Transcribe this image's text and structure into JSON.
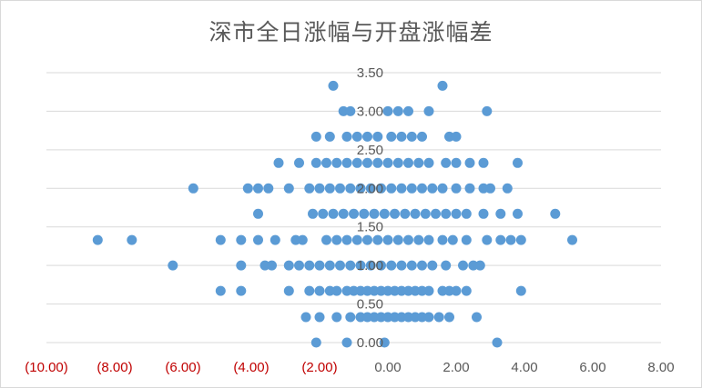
{
  "chart_data": {
    "type": "scatter",
    "title": "深市全日涨幅与开盘涨幅差",
    "xlabel": "",
    "ylabel": "",
    "xlim": [
      -10,
      8
    ],
    "ylim": [
      0,
      3.5
    ],
    "x_ticks": [
      {
        "value": -10,
        "label": "(10.00)",
        "color": "#c00000"
      },
      {
        "value": -8,
        "label": "(8.00)",
        "color": "#c00000"
      },
      {
        "value": -6,
        "label": "(6.00)",
        "color": "#c00000"
      },
      {
        "value": -4,
        "label": "(4.00)",
        "color": "#c00000"
      },
      {
        "value": -2,
        "label": "(2.00)",
        "color": "#c00000"
      },
      {
        "value": 0,
        "label": "0.00",
        "color": "#595959"
      },
      {
        "value": 2,
        "label": "2.00",
        "color": "#595959"
      },
      {
        "value": 4,
        "label": "4.00",
        "color": "#595959"
      },
      {
        "value": 6,
        "label": "6.00",
        "color": "#595959"
      },
      {
        "value": 8,
        "label": "8.00",
        "color": "#595959"
      }
    ],
    "y_ticks": [
      {
        "value": 0,
        "label": "0.00"
      },
      {
        "value": 0.5,
        "label": "0.50"
      },
      {
        "value": 1,
        "label": "1.00"
      },
      {
        "value": 1.5,
        "label": "1.50"
      },
      {
        "value": 2,
        "label": "2.00"
      },
      {
        "value": 2.5,
        "label": "2.50"
      },
      {
        "value": 3,
        "label": "3.00"
      },
      {
        "value": 3.5,
        "label": "3.50"
      }
    ],
    "grid": "horizontal",
    "legend": "none",
    "colors": {
      "marker": "#5b9bd5",
      "grid": "#d9d9d9",
      "axis_text": "#595959",
      "negative_text": "#c00000"
    },
    "series": [
      {
        "points": [
          [
            -2.1,
            0.0
          ],
          [
            -1.2,
            0.0
          ],
          [
            -0.1,
            0.0
          ],
          [
            3.2,
            0.0
          ],
          [
            -2.4,
            0.33
          ],
          [
            -2.0,
            0.33
          ],
          [
            -1.5,
            0.33
          ],
          [
            -1.1,
            0.33
          ],
          [
            -0.8,
            0.33
          ],
          [
            -0.6,
            0.33
          ],
          [
            -0.4,
            0.33
          ],
          [
            -0.2,
            0.33
          ],
          [
            0.0,
            0.33
          ],
          [
            0.2,
            0.33
          ],
          [
            0.4,
            0.33
          ],
          [
            0.6,
            0.33
          ],
          [
            0.8,
            0.33
          ],
          [
            1.0,
            0.33
          ],
          [
            1.2,
            0.33
          ],
          [
            1.5,
            0.33
          ],
          [
            1.8,
            0.33
          ],
          [
            2.6,
            0.33
          ],
          [
            -4.9,
            0.67
          ],
          [
            -4.3,
            0.67
          ],
          [
            -2.9,
            0.67
          ],
          [
            -2.3,
            0.67
          ],
          [
            -2.0,
            0.67
          ],
          [
            -1.7,
            0.67
          ],
          [
            -1.5,
            0.67
          ],
          [
            -1.2,
            0.67
          ],
          [
            -1.0,
            0.67
          ],
          [
            -0.8,
            0.67
          ],
          [
            -0.6,
            0.67
          ],
          [
            -0.4,
            0.67
          ],
          [
            -0.2,
            0.67
          ],
          [
            0.0,
            0.67
          ],
          [
            0.2,
            0.67
          ],
          [
            0.4,
            0.67
          ],
          [
            0.6,
            0.67
          ],
          [
            0.8,
            0.67
          ],
          [
            1.0,
            0.67
          ],
          [
            1.2,
            0.67
          ],
          [
            1.6,
            0.67
          ],
          [
            1.8,
            0.67
          ],
          [
            2.0,
            0.67
          ],
          [
            2.3,
            0.67
          ],
          [
            3.9,
            0.67
          ],
          [
            -6.3,
            1.0
          ],
          [
            -4.3,
            1.0
          ],
          [
            -3.6,
            1.0
          ],
          [
            -3.4,
            1.0
          ],
          [
            -2.9,
            1.0
          ],
          [
            -2.6,
            1.0
          ],
          [
            -2.3,
            1.0
          ],
          [
            -2.0,
            1.0
          ],
          [
            -1.7,
            1.0
          ],
          [
            -1.4,
            1.0
          ],
          [
            -1.1,
            1.0
          ],
          [
            -0.8,
            1.0
          ],
          [
            -0.5,
            1.0
          ],
          [
            -0.2,
            1.0
          ],
          [
            0.1,
            1.0
          ],
          [
            0.4,
            1.0
          ],
          [
            0.7,
            1.0
          ],
          [
            1.0,
            1.0
          ],
          [
            1.3,
            1.0
          ],
          [
            1.7,
            1.0
          ],
          [
            2.2,
            1.0
          ],
          [
            2.5,
            1.0
          ],
          [
            2.7,
            1.0
          ],
          [
            -8.5,
            1.33
          ],
          [
            -7.5,
            1.33
          ],
          [
            -4.9,
            1.33
          ],
          [
            -4.3,
            1.33
          ],
          [
            -3.8,
            1.33
          ],
          [
            -3.3,
            1.33
          ],
          [
            -2.7,
            1.33
          ],
          [
            -2.5,
            1.33
          ],
          [
            -1.8,
            1.33
          ],
          [
            -1.5,
            1.33
          ],
          [
            -1.2,
            1.33
          ],
          [
            -0.9,
            1.33
          ],
          [
            -0.6,
            1.33
          ],
          [
            -0.3,
            1.33
          ],
          [
            0.0,
            1.33
          ],
          [
            0.3,
            1.33
          ],
          [
            0.6,
            1.33
          ],
          [
            0.9,
            1.33
          ],
          [
            1.2,
            1.33
          ],
          [
            1.6,
            1.33
          ],
          [
            1.9,
            1.33
          ],
          [
            2.3,
            1.33
          ],
          [
            2.9,
            1.33
          ],
          [
            3.3,
            1.33
          ],
          [
            3.6,
            1.33
          ],
          [
            3.9,
            1.33
          ],
          [
            5.4,
            1.33
          ],
          [
            -3.8,
            1.67
          ],
          [
            -2.2,
            1.67
          ],
          [
            -1.9,
            1.67
          ],
          [
            -1.6,
            1.67
          ],
          [
            -1.3,
            1.67
          ],
          [
            -1.0,
            1.67
          ],
          [
            -0.7,
            1.67
          ],
          [
            -0.4,
            1.67
          ],
          [
            -0.1,
            1.67
          ],
          [
            0.2,
            1.67
          ],
          [
            0.5,
            1.67
          ],
          [
            0.8,
            1.67
          ],
          [
            1.1,
            1.67
          ],
          [
            1.4,
            1.67
          ],
          [
            1.7,
            1.67
          ],
          [
            2.0,
            1.67
          ],
          [
            2.3,
            1.67
          ],
          [
            2.8,
            1.67
          ],
          [
            3.3,
            1.67
          ],
          [
            3.8,
            1.67
          ],
          [
            4.9,
            1.67
          ],
          [
            -5.7,
            2.0
          ],
          [
            -4.1,
            2.0
          ],
          [
            -3.8,
            2.0
          ],
          [
            -3.5,
            2.0
          ],
          [
            -2.9,
            2.0
          ],
          [
            -2.3,
            2.0
          ],
          [
            -2.0,
            2.0
          ],
          [
            -1.7,
            2.0
          ],
          [
            -1.4,
            2.0
          ],
          [
            -1.1,
            2.0
          ],
          [
            -0.8,
            2.0
          ],
          [
            -0.5,
            2.0
          ],
          [
            -0.2,
            2.0
          ],
          [
            0.1,
            2.0
          ],
          [
            0.4,
            2.0
          ],
          [
            0.7,
            2.0
          ],
          [
            1.0,
            2.0
          ],
          [
            1.3,
            2.0
          ],
          [
            1.6,
            2.0
          ],
          [
            2.0,
            2.0
          ],
          [
            2.4,
            2.0
          ],
          [
            2.8,
            2.0
          ],
          [
            3.0,
            2.0
          ],
          [
            3.5,
            2.0
          ],
          [
            -3.2,
            2.33
          ],
          [
            -2.6,
            2.33
          ],
          [
            -2.1,
            2.33
          ],
          [
            -1.8,
            2.33
          ],
          [
            -1.5,
            2.33
          ],
          [
            -1.2,
            2.33
          ],
          [
            -0.9,
            2.33
          ],
          [
            -0.6,
            2.33
          ],
          [
            -0.3,
            2.33
          ],
          [
            0.0,
            2.33
          ],
          [
            0.3,
            2.33
          ],
          [
            0.6,
            2.33
          ],
          [
            0.9,
            2.33
          ],
          [
            1.2,
            2.33
          ],
          [
            1.7,
            2.33
          ],
          [
            2.0,
            2.33
          ],
          [
            2.4,
            2.33
          ],
          [
            2.8,
            2.33
          ],
          [
            3.8,
            2.33
          ],
          [
            -2.1,
            2.67
          ],
          [
            -1.7,
            2.67
          ],
          [
            -1.2,
            2.67
          ],
          [
            -0.9,
            2.67
          ],
          [
            -0.6,
            2.67
          ],
          [
            -0.3,
            2.67
          ],
          [
            0.1,
            2.67
          ],
          [
            0.4,
            2.67
          ],
          [
            0.7,
            2.67
          ],
          [
            1.0,
            2.67
          ],
          [
            1.8,
            2.67
          ],
          [
            2.0,
            2.67
          ],
          [
            -1.3,
            3.0
          ],
          [
            -1.1,
            3.0
          ],
          [
            0.0,
            3.0
          ],
          [
            0.3,
            3.0
          ],
          [
            0.6,
            3.0
          ],
          [
            1.2,
            3.0
          ],
          [
            2.9,
            3.0
          ],
          [
            -1.6,
            3.33
          ],
          [
            1.6,
            3.33
          ]
        ]
      }
    ]
  }
}
